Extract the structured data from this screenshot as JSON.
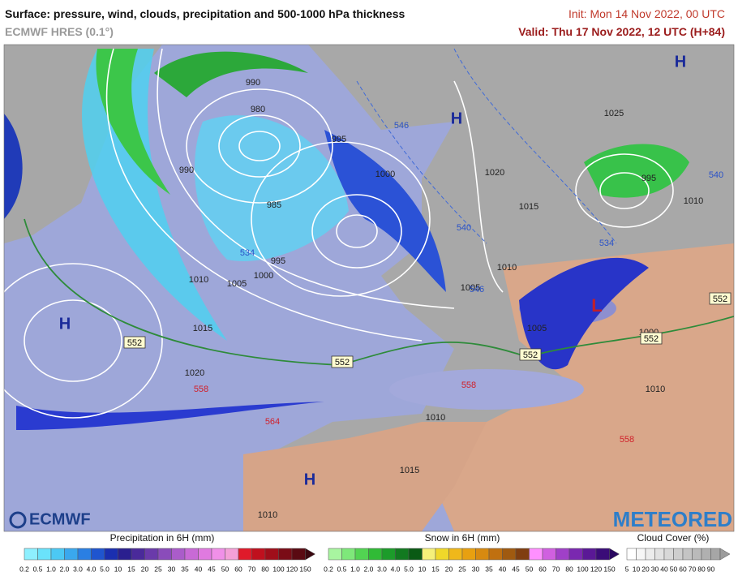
{
  "header": {
    "title": "Surface: pressure, wind, clouds, precipitation and 500-1000 hPa thickness",
    "model": "ECMWF HRES (0.1°)",
    "init": "Init: Mon 14 Nov 2022, 00 UTC",
    "valid": "Valid: Thu 17 Nov 2022, 12 UTC (H+84)"
  },
  "map": {
    "highs": [
      "H",
      "H",
      "H",
      "H"
    ],
    "lows": [
      "L"
    ],
    "isobars": [
      "990",
      "980",
      "995",
      "990",
      "1000",
      "985",
      "995",
      "1000",
      "1005",
      "1010",
      "1015",
      "1020",
      "1020",
      "1015",
      "1010",
      "1005",
      "1005",
      "1000",
      "1010",
      "1015",
      "1010",
      "1025",
      "1010",
      "1010",
      "995"
    ],
    "thickness_blue": [
      "540",
      "534",
      "540",
      "546",
      "534",
      "546"
    ],
    "thickness_red": [
      "558",
      "564",
      "558",
      "558"
    ],
    "thickness_boxed": [
      "552",
      "552",
      "552",
      "552",
      "552"
    ]
  },
  "logos": {
    "left": "ECMWF",
    "right": "METEORED"
  },
  "legend": {
    "precipitation": {
      "title": "Precipitation in 6H (mm)",
      "ticks": [
        "0.2",
        "0.5",
        "1.0",
        "2.0",
        "3.0",
        "4.0",
        "5.0",
        "10",
        "15",
        "20",
        "25",
        "30",
        "35",
        "40",
        "45",
        "50",
        "60",
        "70",
        "80",
        "100",
        "120",
        "150"
      ]
    },
    "snow": {
      "title": "Snow in 6H (mm)",
      "ticks": [
        "0.2",
        "0.5",
        "1.0",
        "2.0",
        "3.0",
        "4.0",
        "5.0",
        "10",
        "15",
        "20",
        "25",
        "30",
        "35",
        "40",
        "45",
        "50",
        "60",
        "70",
        "80",
        "100",
        "120",
        "150"
      ]
    },
    "cloud": {
      "title": "Cloud Cover (%)",
      "ticks": [
        "5",
        "10",
        "20",
        "30",
        "40",
        "50",
        "60",
        "70",
        "80",
        "90"
      ]
    }
  }
}
